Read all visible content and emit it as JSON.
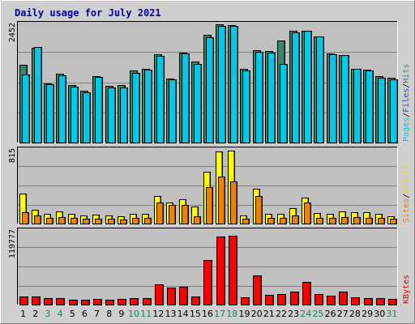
{
  "chart_data": {
    "type": "bar",
    "title": "Daily usage for July 2021",
    "categories": [
      "1",
      "2",
      "3",
      "4",
      "5",
      "6",
      "7",
      "8",
      "9",
      "10",
      "11",
      "12",
      "13",
      "14",
      "15",
      "16",
      "17",
      "18",
      "19",
      "20",
      "21",
      "22",
      "23",
      "24",
      "25",
      "26",
      "27",
      "28",
      "29",
      "30",
      "31"
    ],
    "weekend_days": [
      "3",
      "4",
      "10",
      "11",
      "17",
      "18",
      "24",
      "25",
      "31"
    ],
    "panels": [
      {
        "name": "hits-files-pages",
        "ymax_label": "2452",
        "ylim": [
          0,
          2452
        ],
        "legend": [
          "Pages",
          "/",
          "Files",
          "/",
          "Hits"
        ],
        "legend_colors": [
          "#00c8e8",
          "#000000",
          "#0060c0",
          "#000000",
          "#2e8a68"
        ],
        "series": [
          {
            "name": "Hits",
            "color": "#2e8a68",
            "values": [
              1600,
              1950,
              1220,
              1410,
              1180,
              1070,
              1360,
              1170,
              1180,
              1480,
              1520,
              1820,
              1320,
              1850,
              1660,
              2220,
              2430,
              2420,
              1510,
              1900,
              1880,
              2100,
              2300,
              2300,
              2180,
              1840,
              1800,
              1510,
              1500,
              1360,
              1340
            ]
          },
          {
            "name": "Files",
            "color": "#00c8e8",
            "values": [
              1400,
              1960,
              1200,
              1390,
              1150,
              1040,
              1350,
              1140,
              1140,
              1430,
              1500,
              1790,
              1300,
              1830,
              1620,
              2170,
              2400,
              2400,
              1480,
              1870,
              1850,
              1620,
              2270,
              2300,
              2180,
              1820,
              1800,
              1510,
              1480,
              1340,
              1300
            ]
          }
        ]
      },
      {
        "name": "visits-sites",
        "ymax_label": "815",
        "ylim": [
          0,
          815
        ],
        "legend": [
          "Sites",
          "/",
          "Visits"
        ],
        "legend_colors": [
          "#f08000",
          "#000000",
          "#e8e000"
        ],
        "series": [
          {
            "name": "Visits",
            "color": "#ffff00",
            "values": [
              330,
              150,
              110,
              130,
              110,
              90,
              95,
              85,
              80,
              110,
              110,
              300,
              230,
              270,
              190,
              570,
              785,
              800,
              90,
              380,
              110,
              110,
              165,
              280,
              115,
              110,
              135,
              120,
              120,
              105,
              80
            ]
          },
          {
            "name": "Sites",
            "color": "#f08000",
            "values": [
              120,
              90,
              60,
              75,
              60,
              50,
              55,
              50,
              45,
              60,
              65,
              230,
              200,
              200,
              80,
              400,
              510,
              460,
              50,
              300,
              60,
              60,
              90,
              230,
              65,
              60,
              75,
              70,
              65,
              60,
              50
            ]
          }
        ]
      },
      {
        "name": "kbytes",
        "ymax_label": "119777",
        "ylim": [
          0,
          119777
        ],
        "legend": [
          "KBytes"
        ],
        "legend_colors": [
          "#e80000"
        ],
        "series": [
          {
            "name": "KBytes",
            "color": "#ff0000",
            "values": [
              13000,
              12500,
              11000,
              11000,
              8000,
              7500,
              9500,
              8000,
              8500,
              11000,
              11000,
              33000,
              27500,
              29000,
              13000,
              71000,
              109000,
              111000,
              12000,
              47000,
              16000,
              17000,
              21000,
              37000,
              17000,
              14000,
              21000,
              12000,
              11000,
              10000,
              9500
            ]
          }
        ]
      }
    ]
  }
}
